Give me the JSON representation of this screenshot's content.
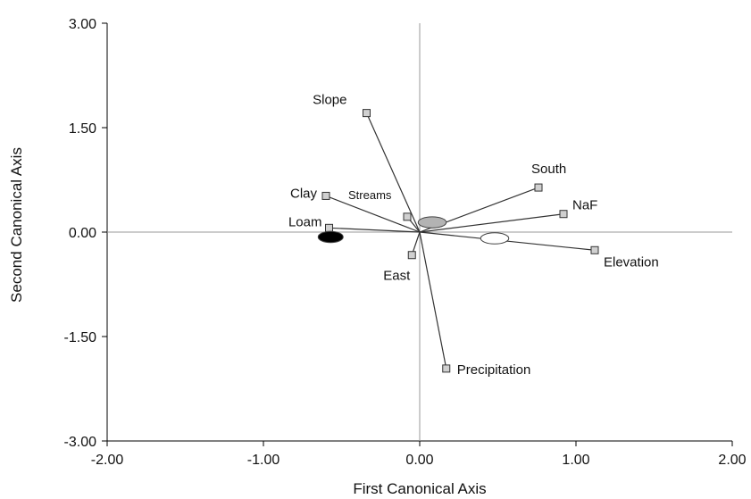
{
  "chart_data": {
    "type": "scatter",
    "title": "",
    "xlabel": "First Canonical Axis",
    "ylabel": "Second Canonical Axis",
    "xlim": [
      -2.0,
      2.0
    ],
    "ylim": [
      -3.0,
      3.0
    ],
    "x_ticks": [
      -2.0,
      -1.0,
      0.0,
      1.0,
      2.0
    ],
    "x_tick_labels": [
      "-2.00",
      "-1.00",
      "0.00",
      "1.00",
      "2.00"
    ],
    "y_ticks": [
      3.0,
      1.5,
      0.0,
      -1.5,
      -3.0
    ],
    "y_tick_labels": [
      "3.00",
      "1.50",
      "0.00",
      "-1.50",
      "-3.00"
    ],
    "grid": false,
    "origin_lines": true,
    "vectors": [
      {
        "label": "Slope",
        "x": -0.34,
        "y": 1.71
      },
      {
        "label": "South",
        "x": 0.76,
        "y": 0.64
      },
      {
        "label": "NaF",
        "x": 0.92,
        "y": 0.26
      },
      {
        "label": "Clay",
        "x": -0.6,
        "y": 0.52
      },
      {
        "label": "Streams",
        "x": -0.08,
        "y": 0.22
      },
      {
        "label": "Loam",
        "x": -0.58,
        "y": 0.06
      },
      {
        "label": "East",
        "x": -0.05,
        "y": -0.33
      },
      {
        "label": "Elevation",
        "x": 1.12,
        "y": -0.26
      },
      {
        "label": "Precipitation",
        "x": 0.17,
        "y": -1.96
      }
    ],
    "group_centroids": [
      {
        "x": -0.57,
        "y": -0.07,
        "rx": 0.08,
        "ry": 0.08,
        "fill": "#000000"
      },
      {
        "x": 0.08,
        "y": 0.14,
        "rx": 0.09,
        "ry": 0.08,
        "fill": "#b3b3b3"
      },
      {
        "x": 0.48,
        "y": -0.09,
        "rx": 0.09,
        "ry": 0.08,
        "fill": "#ffffff"
      }
    ],
    "colors": {
      "vector": "#333333",
      "marker_fill": "#d0d0d0",
      "axis": "#000000",
      "origin_line": "#999999"
    }
  }
}
